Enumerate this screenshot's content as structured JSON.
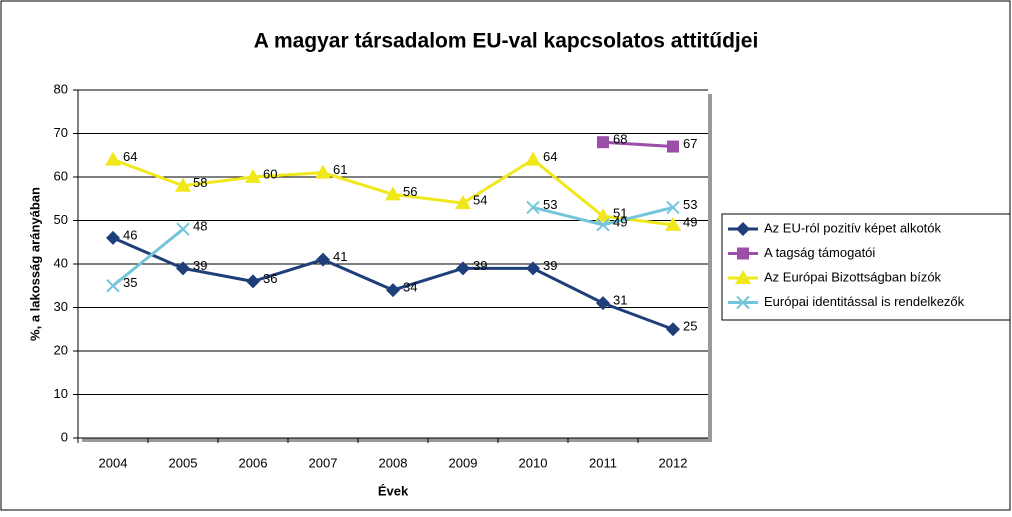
{
  "chart_data": {
    "type": "line",
    "title": "A magyar társadalom EU-val kapcsolatos attitűdjei",
    "xlabel": "Évek",
    "ylabel": "%, a lakosság arányában",
    "categories": [
      "2004",
      "2005",
      "2006",
      "2007",
      "2008",
      "2009",
      "2010",
      "2011",
      "2012"
    ],
    "series": [
      {
        "name": "Az EU-ról pozitív képet alkotók",
        "color": "#1f3f7a",
        "marker": "diamond",
        "values": [
          46,
          39,
          36,
          41,
          34,
          39,
          39,
          31,
          25
        ]
      },
      {
        "name": "A tagság támogatói",
        "color": "#9b4fa8",
        "marker": "square",
        "values": [
          null,
          null,
          null,
          null,
          null,
          null,
          null,
          68,
          67
        ]
      },
      {
        "name": "Az Európai Bizottságban bízók",
        "color": "#f0e81a",
        "marker": "triangle",
        "values": [
          64,
          58,
          60,
          61,
          56,
          54,
          64,
          51,
          49
        ]
      },
      {
        "name": "Európai identitással is rendelkezők",
        "color": "#74c5dc",
        "marker": "x",
        "values": [
          35,
          48,
          null,
          null,
          null,
          null,
          53,
          49,
          53
        ]
      }
    ],
    "ylim": [
      0,
      80
    ],
    "yticks": [
      0,
      10,
      20,
      30,
      40,
      50,
      60,
      70,
      80
    ],
    "grid": true,
    "legend": "right"
  }
}
